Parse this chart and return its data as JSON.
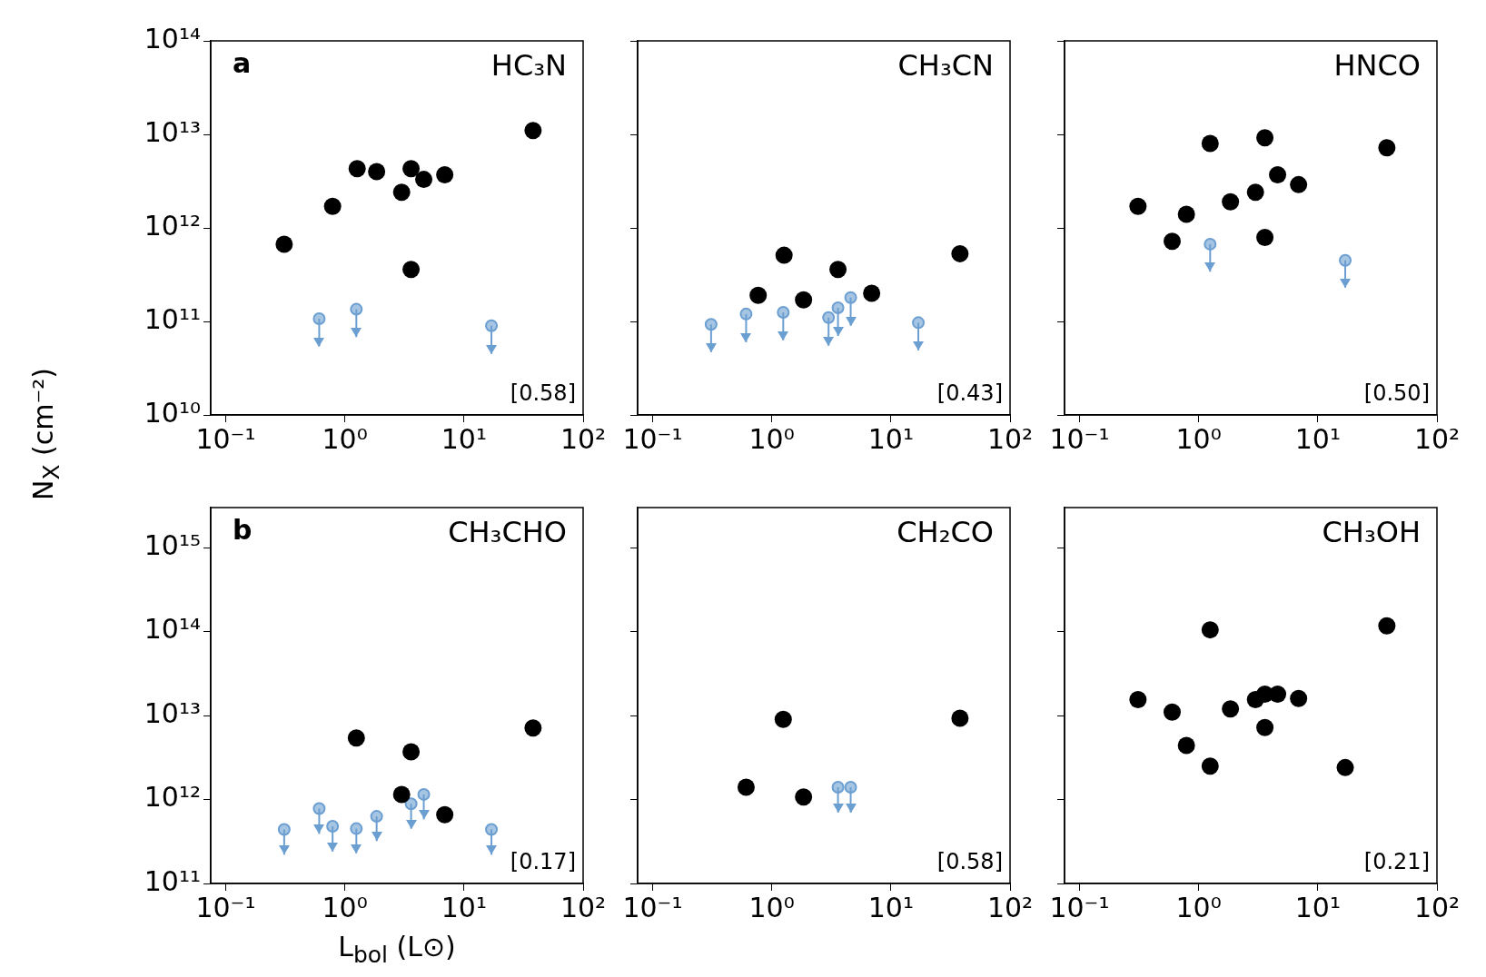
{
  "chart_data": [
    {
      "type": "scatter",
      "title": "HC₃N",
      "subtitle": "[0.58]",
      "annotations": [
        "a"
      ],
      "ylabel": "N$_{X}$ (cm⁻²)",
      "log": "xy",
      "marker": "circle",
      "xlim": [
        0.075,
        100
      ],
      "ylim": [
        10000000000.0,
        100000000000000.0
      ],
      "xticks": [
        {
          "value": 0.1,
          "label": "10⁻¹"
        },
        {
          "value": 1,
          "label": "10⁰"
        },
        {
          "value": 10,
          "label": "10¹"
        },
        {
          "value": 100,
          "label": "10²"
        }
      ],
      "yticks": [
        {
          "value": 10000000000.0,
          "label": "10¹⁰"
        },
        {
          "value": 100000000000.0,
          "label": "10¹¹"
        },
        {
          "value": 1000000000000.0,
          "label": "10¹²"
        },
        {
          "value": 10000000000000.0,
          "label": "10¹³"
        },
        {
          "value": 100000000000000.0,
          "label": "10¹⁴"
        }
      ],
      "series": [
        {
          "color": "#000000",
          "x": [
            0.31,
            0.79,
            1.27,
            1.85,
            3.0,
            3.6,
            3.6,
            4.6,
            6.9,
            38
          ],
          "values": [
            670000000000.0,
            1700000000000.0,
            4300000000000.0,
            4000000000000.0,
            2400000000000.0,
            4300000000000.0,
            360000000000.0,
            3300000000000.0,
            3700000000000.0,
            11000000000000.0
          ]
        },
        {
          "color": "#6b9ed1",
          "x": [
            0.61,
            1.25,
            17
          ],
          "values": [
            107000000000.0,
            135000000000.0,
            90000000000.0
          ],
          "errors": [
            [
              54000000000.0,
              107000000000.0
            ],
            [
              68000000000.0,
              135000000000.0
            ],
            [
              45000000000.0,
              90000000000.0
            ]
          ]
        }
      ]
    },
    {
      "type": "scatter",
      "title": "CH₃CN",
      "subtitle": "[0.43]",
      "log": "xy",
      "marker": "circle",
      "tick_labels": "x",
      "xlim": [
        0.075,
        100
      ],
      "ylim": [
        10000000000.0,
        100000000000000.0
      ],
      "xticks": [
        {
          "value": 0.1,
          "label": "10⁻¹"
        },
        {
          "value": 1,
          "label": "10⁰"
        },
        {
          "value": 10,
          "label": "10¹"
        },
        {
          "value": 100,
          "label": "10²"
        }
      ],
      "yticks": [
        {
          "value": 10000000000.0,
          "label": null
        },
        {
          "value": 100000000000.0,
          "label": null
        },
        {
          "value": 1000000000000.0,
          "label": null
        },
        {
          "value": 10000000000000.0,
          "label": null
        },
        {
          "value": 100000000000000.0,
          "label": null
        }
      ],
      "series": [
        {
          "color": "#000000",
          "x": [
            0.77,
            1.27,
            1.85,
            3.6,
            6.9,
            38
          ],
          "values": [
            190000000000.0,
            510000000000.0,
            170000000000.0,
            360000000000.0,
            200000000000.0,
            530000000000.0
          ]
        },
        {
          "color": "#6b9ed1",
          "x": [
            0.31,
            0.61,
            1.25,
            3.0,
            3.6,
            4.6,
            17
          ],
          "values": [
            93000000000.0,
            120000000000.0,
            125000000000.0,
            110000000000.0,
            140000000000.0,
            180000000000.0,
            97000000000.0
          ],
          "errors": [
            [
              47000000000.0,
              93000000000.0
            ],
            [
              60000000000.0,
              120000000000.0
            ],
            [
              63000000000.0,
              125000000000.0
            ],
            [
              55000000000.0,
              110000000000.0
            ],
            [
              70000000000.0,
              140000000000.0
            ],
            [
              90000000000.0,
              180000000000.0
            ],
            [
              49000000000.0,
              97000000000.0
            ]
          ]
        }
      ]
    },
    {
      "type": "scatter",
      "title": "HNCO",
      "subtitle": "[0.50]",
      "log": "xy",
      "marker": "circle",
      "tick_labels": "x",
      "xlim": [
        0.075,
        100
      ],
      "ylim": [
        10000000000.0,
        100000000000000.0
      ],
      "xticks": [
        {
          "value": 0.1,
          "label": "10⁻¹"
        },
        {
          "value": 1,
          "label": "10⁰"
        },
        {
          "value": 10,
          "label": "10¹"
        },
        {
          "value": 100,
          "label": "10²"
        }
      ],
      "yticks": [
        {
          "value": 10000000000.0,
          "label": null
        },
        {
          "value": 100000000000.0,
          "label": null
        },
        {
          "value": 1000000000000.0,
          "label": null
        },
        {
          "value": 10000000000000.0,
          "label": null
        },
        {
          "value": 100000000000000.0,
          "label": null
        }
      ],
      "series": [
        {
          "color": "#000000",
          "x": [
            0.31,
            0.6,
            0.79,
            1.25,
            1.85,
            3.0,
            3.6,
            3.6,
            4.6,
            6.9,
            38
          ],
          "values": [
            1700000000000.0,
            720000000000.0,
            1400000000000.0,
            8000000000000.0,
            1900000000000.0,
            2400000000000.0,
            9200000000000.0,
            790000000000.0,
            3700000000000.0,
            2900000000000.0,
            7200000000000.0
          ]
        },
        {
          "color": "#6b9ed1",
          "x": [
            1.25,
            17
          ],
          "values": [
            670000000000.0,
            450000000000.0
          ],
          "errors": [
            [
              340000000000.0,
              670000000000.0
            ],
            [
              230000000000.0,
              450000000000.0
            ]
          ]
        }
      ]
    },
    {
      "type": "scatter",
      "title": "CH₃CHO",
      "subtitle": "[0.17]",
      "annotations": [
        "b"
      ],
      "xlabel": "L$_{bol}$ (L⊙)",
      "log": "xy",
      "marker": "circle",
      "xlim": [
        0.075,
        100
      ],
      "ylim": [
        100000000000.0,
        3000000000000000.0
      ],
      "xticks": [
        {
          "value": 0.1,
          "label": "10⁻¹"
        },
        {
          "value": 1,
          "label": "10⁰"
        },
        {
          "value": 10,
          "label": "10¹"
        },
        {
          "value": 100,
          "label": "10²"
        }
      ],
      "yticks": [
        {
          "value": 100000000000.0,
          "label": "10¹¹"
        },
        {
          "value": 1000000000000.0,
          "label": "10¹²"
        },
        {
          "value": 10000000000000.0,
          "label": "10¹³"
        },
        {
          "value": 100000000000000.0,
          "label": "10¹⁴"
        },
        {
          "value": 1000000000000000.0,
          "label": "10¹⁵"
        }
      ],
      "series": [
        {
          "color": "#000000",
          "x": [
            1.25,
            3.6,
            3.0,
            6.9,
            38
          ],
          "values": [
            5400000000000.0,
            3700000000000.0,
            1150000000000.0,
            660000000000.0,
            7100000000000.0
          ]
        },
        {
          "color": "#6b9ed1",
          "x": [
            0.31,
            0.61,
            0.79,
            1.25,
            1.85,
            3.6,
            4.6,
            17
          ],
          "values": [
            440000000000.0,
            780000000000.0,
            480000000000.0,
            450000000000.0,
            630000000000.0,
            890000000000.0,
            1150000000000.0,
            440000000000.0
          ],
          "errors": [
            [
              220000000000.0,
              440000000000.0
            ],
            [
              390000000000.0,
              780000000000.0
            ],
            [
              240000000000.0,
              480000000000.0
            ],
            [
              230000000000.0,
              450000000000.0
            ],
            [
              320000000000.0,
              630000000000.0
            ],
            [
              450000000000.0,
              890000000000.0
            ],
            [
              580000000000.0,
              1150000000000.0
            ],
            [
              220000000000.0,
              440000000000.0
            ]
          ]
        }
      ]
    },
    {
      "type": "scatter",
      "title": "CH₂CO",
      "subtitle": "[0.58]",
      "log": "xy",
      "marker": "circle",
      "tick_labels": "x",
      "xlim": [
        0.075,
        100
      ],
      "ylim": [
        100000000000.0,
        3000000000000000.0
      ],
      "xticks": [
        {
          "value": 0.1,
          "label": "10⁻¹"
        },
        {
          "value": 1,
          "label": "10⁰"
        },
        {
          "value": 10,
          "label": "10¹"
        },
        {
          "value": 100,
          "label": "10²"
        }
      ],
      "yticks": [
        {
          "value": 100000000000.0,
          "label": null
        },
        {
          "value": 1000000000000.0,
          "label": null
        },
        {
          "value": 10000000000000.0,
          "label": null
        },
        {
          "value": 100000000000000.0,
          "label": null
        },
        {
          "value": 1000000000000000.0,
          "label": null
        }
      ],
      "series": [
        {
          "color": "#000000",
          "x": [
            0.61,
            1.25,
            1.85,
            38
          ],
          "values": [
            1400000000000.0,
            9000000000000.0,
            1070000000000.0,
            9300000000000.0
          ]
        },
        {
          "color": "#6b9ed1",
          "x": [
            3.6,
            4.6
          ],
          "values": [
            1400000000000.0,
            1400000000000.0
          ],
          "errors": [
            [
              700000000000.0,
              1400000000000.0
            ],
            [
              700000000000.0,
              1400000000000.0
            ]
          ]
        }
      ]
    },
    {
      "type": "scatter",
      "title": "CH₃OH",
      "subtitle": "[0.21]",
      "log": "xy",
      "marker": "circle",
      "tick_labels": "x",
      "xlim": [
        0.075,
        100
      ],
      "ylim": [
        100000000000.0,
        3000000000000000.0
      ],
      "xticks": [
        {
          "value": 0.1,
          "label": "10⁻¹"
        },
        {
          "value": 1,
          "label": "10⁰"
        },
        {
          "value": 10,
          "label": "10¹"
        },
        {
          "value": 100,
          "label": "10²"
        }
      ],
      "yticks": [
        {
          "value": 100000000000.0,
          "label": null
        },
        {
          "value": 1000000000000.0,
          "label": null
        },
        {
          "value": 10000000000000.0,
          "label": null
        },
        {
          "value": 100000000000000.0,
          "label": null
        },
        {
          "value": 1000000000000000.0,
          "label": null
        }
      ],
      "series": [
        {
          "color": "#000000",
          "x": [
            0.31,
            0.6,
            0.79,
            1.25,
            1.25,
            1.85,
            3.0,
            3.6,
            3.6,
            4.6,
            6.9,
            17,
            38
          ],
          "values": [
            15500000000000.0,
            11000000000000.0,
            4400000000000.0,
            105000000000000.0,
            2500000000000.0,
            12000000000000.0,
            15500000000000.0,
            18000000000000.0,
            7200000000000.0,
            18000000000000.0,
            16000000000000.0,
            2400000000000.0,
            117000000000000.0
          ]
        }
      ]
    }
  ]
}
